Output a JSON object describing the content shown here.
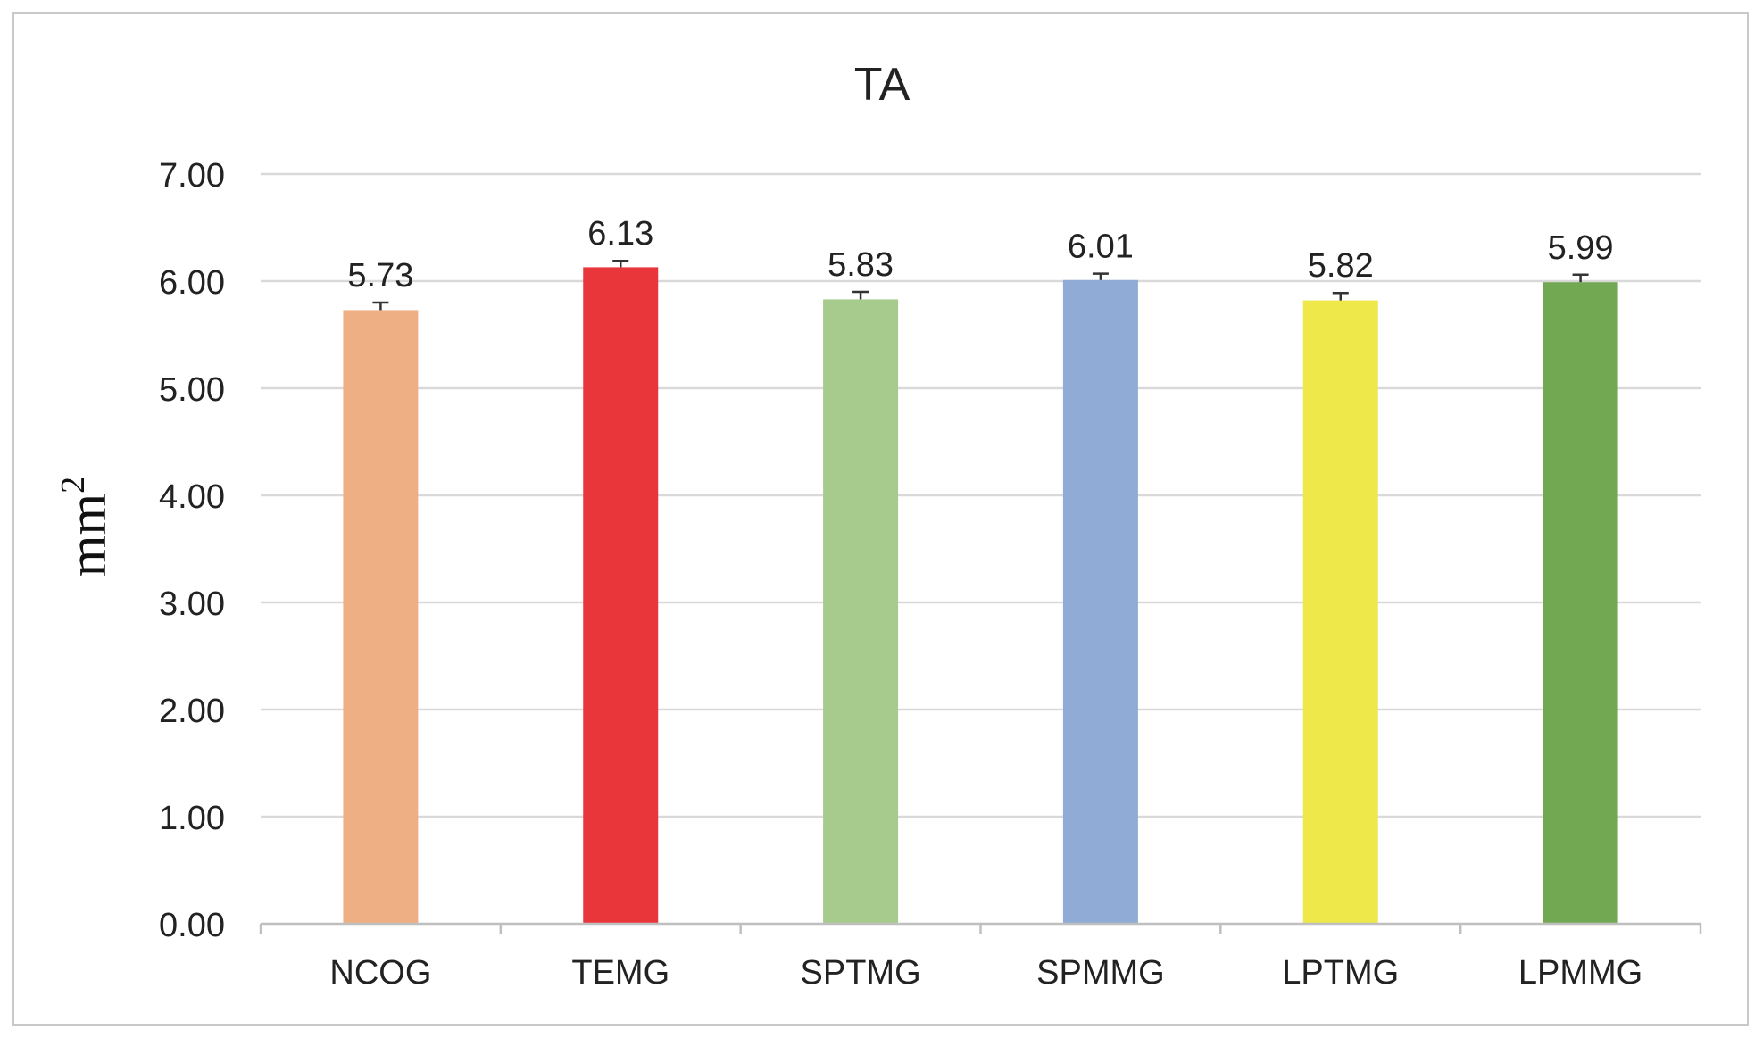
{
  "chart_data": {
    "type": "bar",
    "title": "TA",
    "xlabel": "",
    "ylabel": "mm",
    "ylabel_superscript": "2",
    "ylim": [
      0,
      7
    ],
    "yticks": [
      "0.00",
      "1.00",
      "2.00",
      "3.00",
      "4.00",
      "5.00",
      "6.00",
      "7.00"
    ],
    "categories": [
      "NCOG",
      "TEMG",
      "SPTMG",
      "SPMMG",
      "LPTMG",
      "LPMMG"
    ],
    "values": [
      5.73,
      6.13,
      5.83,
      6.01,
      5.82,
      5.99
    ],
    "value_labels": [
      "5.73",
      "6.13",
      "5.83",
      "6.01",
      "5.82",
      "5.99"
    ],
    "error_plus": [
      0.07,
      0.06,
      0.07,
      0.06,
      0.07,
      0.07
    ],
    "colors": [
      "#efaf84",
      "#e8363a",
      "#a7cb8c",
      "#90abd5",
      "#efe84b",
      "#72a851"
    ],
    "grid": true,
    "legend": "none"
  }
}
